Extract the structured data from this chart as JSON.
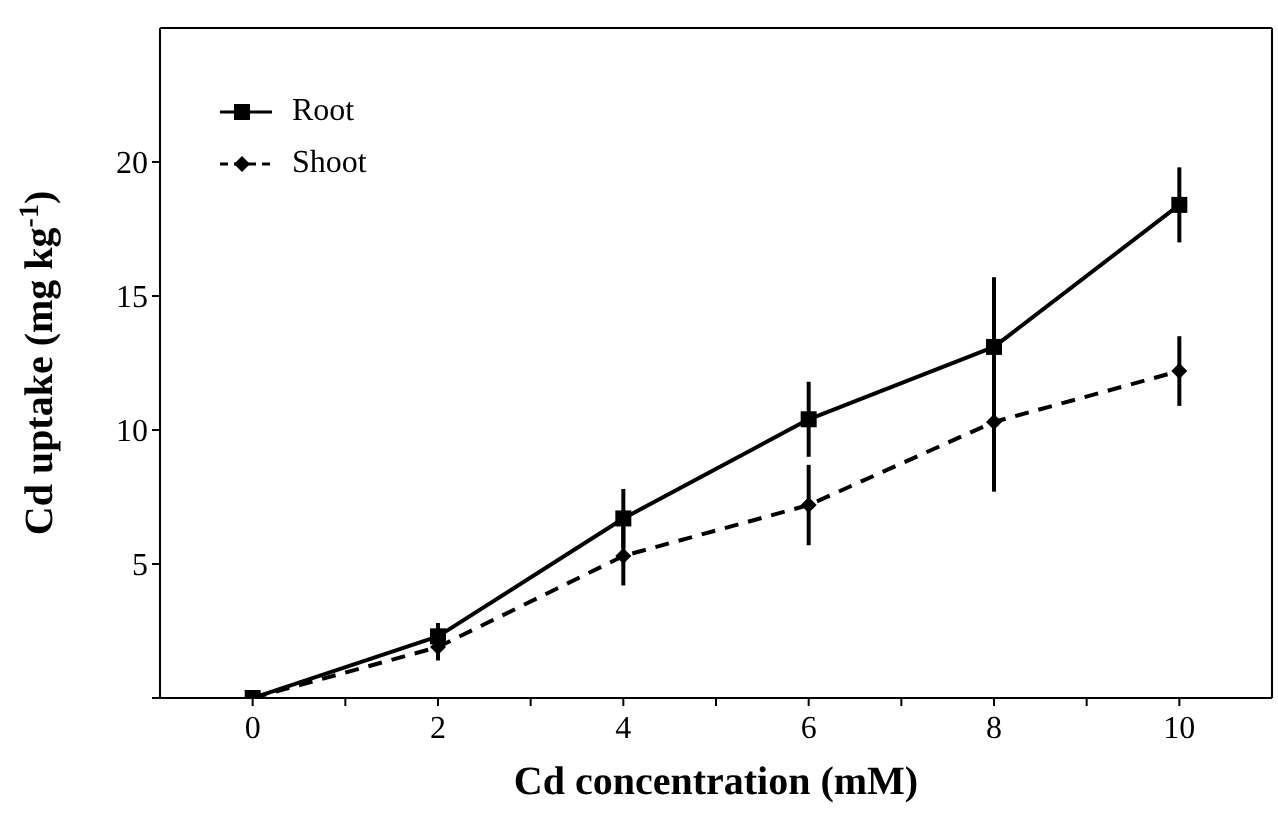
{
  "chart_data": {
    "type": "line",
    "xlabel": "Cd concentration (mM)",
    "ylabel": "Cd uptake (mg kg$^{-1}$)",
    "x": [
      0,
      2,
      4,
      6,
      8,
      10
    ],
    "series": [
      {
        "name": "Root",
        "color": "#000000",
        "marker": "square",
        "line_style": "solid",
        "values": [
          0,
          2.3,
          6.7,
          10.4,
          13.1,
          18.4
        ],
        "errors": [
          null,
          0.5,
          1.1,
          1.4,
          2.6,
          1.4
        ]
      },
      {
        "name": "Shoot",
        "color": "#000000",
        "marker": "diamond",
        "line_style": "dashed",
        "values": [
          0,
          1.9,
          5.3,
          7.2,
          10.3,
          12.2
        ],
        "errors": [
          null,
          0.5,
          1.1,
          1.5,
          2.6,
          1.3
        ]
      }
    ],
    "xlim": [
      -1,
      11
    ],
    "xticks": [
      0,
      {
        "value": 1,
        "label": null
      },
      2,
      {
        "value": 3,
        "label": null
      },
      4,
      {
        "value": 5,
        "label": null
      },
      6,
      {
        "value": 7,
        "label": null
      },
      8,
      {
        "value": 9,
        "label": null
      },
      10
    ],
    "ylim": [
      0,
      25
    ],
    "yticks": [
      {
        "value": 0,
        "label": null
      },
      5,
      10,
      15,
      20
    ],
    "legend": "top left",
    "grid": false
  }
}
